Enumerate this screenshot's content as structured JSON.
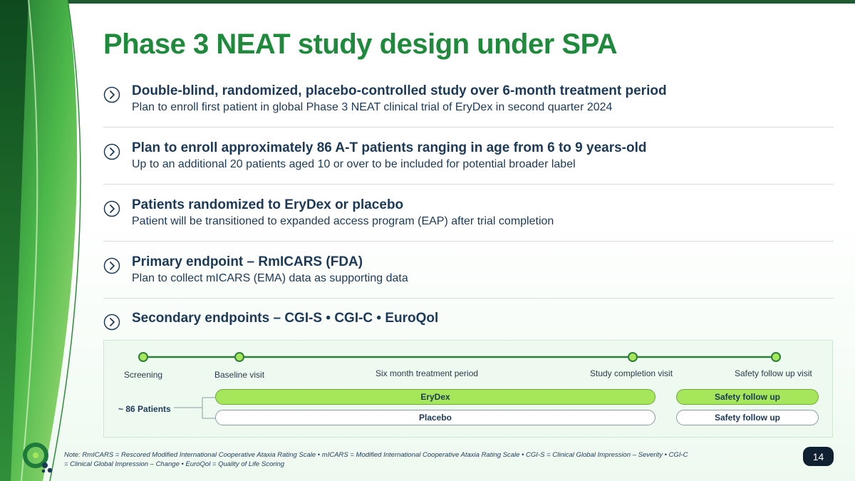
{
  "title": "Phase 3 NEAT study design under SPA",
  "bullets": [
    {
      "heading": "Double-blind, randomized, placebo-controlled study over 6-month treatment period",
      "sub": "Plan to enroll first patient in global Phase 3 NEAT clinical trial of EryDex in second quarter 2024"
    },
    {
      "heading": "Plan to enroll approximately 86 A-T patients ranging in age from 6 to 9 years-old",
      "sub": "Up to an additional 20 patients aged 10 or over to be included for potential broader label"
    },
    {
      "heading": "Patients randomized to EryDex or placebo",
      "sub": "Patient will be transitioned to expanded access program (EAP) after trial completion"
    },
    {
      "heading": "Primary endpoint – RmICARS (FDA)",
      "sub": "Plan to collect mICARS (EMA) data as supporting data"
    },
    {
      "heading": "Secondary endpoints – CGI-S • CGI-C • EuroQol",
      "sub": ""
    }
  ],
  "timeline": {
    "screening": "Screening",
    "baseline": "Baseline visit",
    "treatment_period": "Six month treatment period",
    "completion": "Study completion visit",
    "safety_visit": "Safety follow up visit",
    "patients": "~ 86 Patients",
    "erydex": "EryDex",
    "placebo": "Placebo",
    "safety_follow_up_1": "Safety follow up",
    "safety_follow_up_2": "Safety follow up"
  },
  "footnote": "Note: RmICARS = Rescored Modified International Cooperative Ataxia Rating Scale • mICARS = Modified International Cooperative Ataxia Rating Scale • CGI-S = Clinical Global Impression – Severity • CGI-C = Clinical Global Impression – Change • EuroQol = Quality of Life Scoring",
  "page_number": "14",
  "colors": {
    "brand_green": "#1f8a3c",
    "navy": "#1c3a57",
    "pill_green": "#a6e65a"
  }
}
